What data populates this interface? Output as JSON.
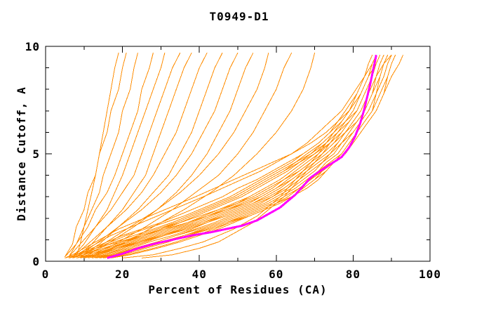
{
  "chart_data": {
    "type": "line",
    "title": "T0949-D1",
    "xlabel": "Percent of Residues (CA)",
    "ylabel": "Distance Cutoff, A",
    "xlim": [
      0,
      100
    ],
    "ylim": [
      0,
      10
    ],
    "x_major_ticks": [
      0,
      20,
      40,
      60,
      80,
      100
    ],
    "x_minor_ticks": [
      10,
      30,
      50,
      70,
      90
    ],
    "y_major_ticks": [
      0,
      5,
      10
    ],
    "y_minor_ticks": [
      1,
      2,
      3,
      4,
      6,
      7,
      8,
      9
    ],
    "grid": false,
    "legend_position": "none",
    "colors": {
      "model_curves": "#ff8c00",
      "highlight_curve": "#ff00ff",
      "axis": "#000000",
      "background": "#ffffff"
    },
    "model_curves": {
      "cutoffs_main": [
        0.15,
        0.3,
        0.6,
        0.9,
        1.2,
        1.5,
        1.8,
        2.1,
        2.4,
        2.7,
        3.0,
        3.4,
        3.8,
        4.2,
        4.6,
        5.0,
        5.5,
        6.0,
        6.5,
        7.0,
        7.8,
        8.6,
        9.2,
        9.6
      ],
      "curves_main": [
        [
          5,
          8,
          12,
          16,
          20,
          25,
          30,
          34,
          38,
          42,
          46,
          50,
          55,
          59,
          63,
          67,
          71,
          74,
          76,
          78,
          81,
          83,
          84,
          85
        ],
        [
          7,
          10,
          15,
          20,
          24,
          29,
          34,
          38,
          42,
          46,
          50,
          54,
          58,
          62,
          65,
          69,
          72,
          75,
          77,
          79,
          81,
          83,
          84,
          85
        ],
        [
          9,
          13,
          18,
          23,
          28,
          33,
          38,
          42,
          46,
          50,
          53,
          57,
          61,
          64,
          67,
          70,
          73,
          76,
          78,
          80,
          82,
          84,
          85,
          86
        ],
        [
          11,
          15,
          21,
          26,
          31,
          36,
          41,
          45,
          49,
          53,
          56,
          60,
          63,
          66,
          69,
          72,
          75,
          77,
          79,
          81,
          83,
          85,
          86,
          87
        ],
        [
          14,
          18,
          24,
          29,
          34,
          39,
          44,
          48,
          52,
          56,
          59,
          62,
          65,
          68,
          71,
          74,
          76,
          78,
          80,
          82,
          84,
          86,
          87,
          88
        ],
        [
          25,
          33,
          40,
          45,
          48,
          51,
          54,
          56,
          58,
          60,
          62,
          64,
          66,
          68,
          70,
          72,
          74,
          76,
          78,
          80,
          82,
          84,
          85,
          86
        ],
        [
          20,
          28,
          35,
          41,
          45,
          49,
          52,
          55,
          57,
          59,
          61,
          63,
          65,
          67,
          69,
          71,
          73,
          75,
          77,
          79,
          81,
          83,
          84,
          85
        ],
        [
          6,
          8,
          11,
          14,
          17,
          21,
          25,
          29,
          33,
          37,
          41,
          46,
          51,
          56,
          60,
          64,
          68,
          71,
          74,
          77,
          80,
          83,
          85,
          86
        ],
        [
          8,
          11,
          16,
          21,
          26,
          31,
          35,
          39,
          43,
          47,
          51,
          55,
          59,
          63,
          66,
          69,
          73,
          75,
          78,
          80,
          82,
          84,
          85,
          86
        ],
        [
          10,
          14,
          19,
          24,
          29,
          34,
          39,
          43,
          47,
          51,
          55,
          59,
          62,
          65,
          68,
          71,
          74,
          77,
          79,
          81,
          83,
          85,
          86,
          87
        ],
        [
          12,
          16,
          22,
          27,
          33,
          38,
          42,
          46,
          50,
          54,
          57,
          61,
          64,
          67,
          70,
          73,
          76,
          78,
          80,
          82,
          84,
          86,
          87,
          88
        ],
        [
          13,
          17,
          23,
          29,
          34,
          40,
          45,
          49,
          53,
          57,
          60,
          64,
          67,
          70,
          72,
          75,
          77,
          80,
          82,
          84,
          86,
          88,
          89,
          90
        ],
        [
          5,
          7,
          10,
          13,
          16,
          19,
          23,
          27,
          31,
          35,
          39,
          44,
          49,
          54,
          59,
          64,
          69,
          73,
          76,
          79,
          82,
          84,
          86,
          87
        ],
        [
          9,
          12,
          17,
          22,
          27,
          32,
          37,
          41,
          45,
          49,
          53,
          57,
          61,
          64,
          67,
          70,
          74,
          76,
          79,
          81,
          83,
          85,
          86,
          87
        ],
        [
          11,
          15,
          20,
          25,
          30,
          35,
          40,
          44,
          48,
          52,
          56,
          60,
          63,
          66,
          69,
          72,
          75,
          78,
          80,
          82,
          84,
          86,
          87,
          88
        ],
        [
          15,
          20,
          26,
          32,
          37,
          42,
          47,
          51,
          55,
          59,
          62,
          66,
          69,
          72,
          75,
          78,
          80,
          82,
          84,
          86,
          88,
          90,
          92,
          93
        ],
        [
          14,
          19,
          25,
          31,
          36,
          41,
          46,
          50,
          54,
          58,
          61,
          65,
          68,
          71,
          74,
          77,
          79,
          81,
          83,
          85,
          87,
          89,
          90,
          91
        ],
        [
          7,
          10,
          14,
          18,
          23,
          28,
          33,
          37,
          41,
          45,
          49,
          53,
          57,
          61,
          65,
          68,
          72,
          75,
          77,
          79,
          82,
          84,
          85,
          86
        ],
        [
          6,
          9,
          13,
          17,
          21,
          26,
          31,
          36,
          40,
          44,
          48,
          52,
          56,
          60,
          64,
          67,
          71,
          74,
          77,
          79,
          81,
          83,
          84,
          85
        ],
        [
          16,
          21,
          28,
          34,
          39,
          44,
          48,
          52,
          56,
          60,
          63,
          66,
          69,
          71,
          73,
          76,
          78,
          80,
          82,
          84,
          86,
          87,
          88,
          89
        ],
        [
          8,
          12,
          18,
          24,
          30,
          36,
          41,
          46,
          50,
          54,
          58,
          62,
          65,
          68,
          71,
          74,
          76,
          78,
          80,
          82,
          84,
          85,
          86,
          87
        ],
        [
          10,
          13,
          17,
          21,
          25,
          30,
          35,
          40,
          45,
          50,
          54,
          58,
          62,
          66,
          69,
          72,
          75,
          78,
          80,
          82,
          84,
          86,
          88,
          90
        ],
        [
          12,
          17,
          24,
          30,
          36,
          42,
          47,
          52,
          56,
          60,
          64,
          67,
          70,
          73,
          75,
          77,
          79,
          81,
          83,
          85,
          86,
          87,
          88,
          89
        ],
        [
          5,
          8,
          13,
          19,
          25,
          31,
          37,
          42,
          47,
          52,
          56,
          60,
          64,
          67,
          70,
          73,
          76,
          78,
          81,
          83,
          85,
          86,
          87,
          88
        ],
        [
          17,
          22,
          29,
          35,
          40,
          45,
          49,
          53,
          57,
          61,
          64,
          67,
          70,
          72,
          74,
          77,
          79,
          81,
          83,
          85,
          86,
          88,
          89,
          90
        ],
        [
          13,
          18,
          25,
          31,
          37,
          43,
          48,
          53,
          57,
          61,
          64,
          68,
          71,
          73,
          75,
          78,
          80,
          82,
          84,
          86,
          88,
          89,
          90,
          91
        ],
        [
          6,
          10,
          15,
          20,
          25,
          30,
          34,
          38,
          42,
          46,
          50,
          54,
          58,
          62,
          66,
          70,
          73,
          76,
          78,
          81,
          83,
          85,
          86,
          87
        ],
        [
          9,
          13,
          19,
          25,
          31,
          37,
          42,
          47,
          51,
          55,
          59,
          63,
          66,
          69,
          72,
          74,
          77,
          79,
          81,
          83,
          85,
          87,
          88,
          89
        ]
      ],
      "cutoffs_fan": [
        0.2,
        0.8,
        1.6,
        2.4,
        3.2,
        4.0,
        5.0,
        6.0,
        7.0,
        8.0,
        9.0,
        9.7
      ],
      "curves_fan": [
        [
          5,
          7,
          8,
          10,
          11,
          13,
          14,
          16,
          17,
          19,
          20,
          21
        ],
        [
          8,
          9,
          10,
          11,
          12,
          13,
          14,
          15,
          16,
          17,
          18,
          19
        ],
        [
          6,
          8,
          10,
          12,
          14,
          15,
          17,
          19,
          20,
          22,
          23,
          24
        ],
        [
          5,
          8,
          11,
          13,
          16,
          18,
          20,
          22,
          24,
          25,
          27,
          28
        ],
        [
          7,
          10,
          13,
          16,
          18,
          20,
          22,
          24,
          26,
          28,
          30,
          31
        ],
        [
          6,
          9,
          13,
          17,
          20,
          23,
          25,
          27,
          29,
          31,
          33,
          35
        ],
        [
          8,
          12,
          16,
          20,
          23,
          26,
          28,
          30,
          32,
          34,
          36,
          38
        ],
        [
          7,
          11,
          16,
          21,
          25,
          28,
          31,
          34,
          36,
          38,
          40,
          42
        ],
        [
          9,
          14,
          19,
          24,
          28,
          32,
          35,
          38,
          40,
          42,
          44,
          46
        ],
        [
          8,
          13,
          19,
          25,
          30,
          34,
          38,
          41,
          44,
          46,
          48,
          50
        ],
        [
          10,
          16,
          23,
          29,
          34,
          38,
          42,
          45,
          48,
          50,
          52,
          54
        ],
        [
          9,
          15,
          22,
          29,
          35,
          40,
          45,
          49,
          52,
          55,
          57,
          58
        ],
        [
          11,
          18,
          26,
          33,
          39,
          45,
          50,
          54,
          57,
          60,
          62,
          64
        ],
        [
          12,
          20,
          28,
          36,
          43,
          49,
          55,
          60,
          64,
          67,
          69,
          70
        ]
      ]
    },
    "highlight_curve": {
      "points": [
        [
          16,
          0.15
        ],
        [
          20,
          0.35
        ],
        [
          24,
          0.6
        ],
        [
          28,
          0.8
        ],
        [
          33,
          1.0
        ],
        [
          38,
          1.2
        ],
        [
          43,
          1.35
        ],
        [
          47,
          1.5
        ],
        [
          51,
          1.65
        ],
        [
          55,
          1.9
        ],
        [
          58,
          2.2
        ],
        [
          61,
          2.5
        ],
        [
          63,
          2.8
        ],
        [
          65,
          3.1
        ],
        [
          67,
          3.5
        ],
        [
          69,
          3.9
        ],
        [
          71,
          4.15
        ],
        [
          74,
          4.5
        ],
        [
          77,
          4.85
        ],
        [
          79,
          5.3
        ],
        [
          80.5,
          5.8
        ],
        [
          81.8,
          6.4
        ],
        [
          82.8,
          7.0
        ],
        [
          83.6,
          7.6
        ],
        [
          84.4,
          8.2
        ],
        [
          85.2,
          8.9
        ],
        [
          85.8,
          9.4
        ],
        [
          86,
          9.6
        ]
      ]
    }
  }
}
